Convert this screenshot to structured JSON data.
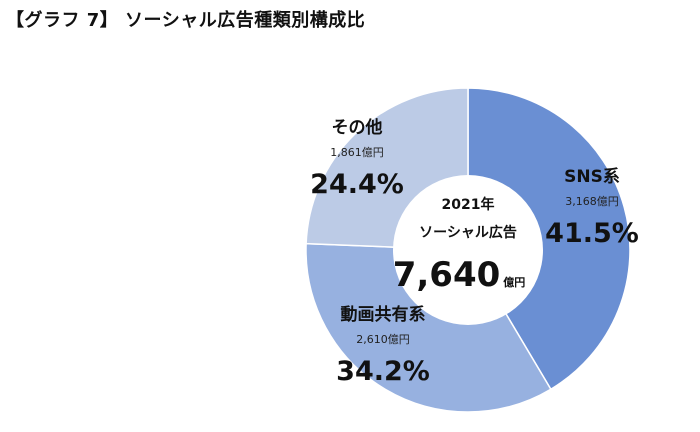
{
  "chart_data": {
    "type": "pie",
    "title": "【グラフ 7】 ソーシャル広告種類別構成比",
    "center": {
      "line1": "2021年",
      "line2": "ソーシャル広告",
      "total": "7,640",
      "unit": "億円"
    },
    "slices": [
      {
        "name": "SNS系",
        "value_label": "3,168億円",
        "amount": 3168,
        "percent": 41.5,
        "percent_label": "41.5%",
        "color": "#6a8fd3"
      },
      {
        "name": "動画共有系",
        "value_label": "2,610億円",
        "amount": 2610,
        "percent": 34.2,
        "percent_label": "34.2%",
        "color": "#97b1e0"
      },
      {
        "name": "その他",
        "value_label": "1,861億円",
        "amount": 1861,
        "percent": 24.4,
        "percent_label": "24.4%",
        "color": "#bccbe6"
      }
    ]
  }
}
